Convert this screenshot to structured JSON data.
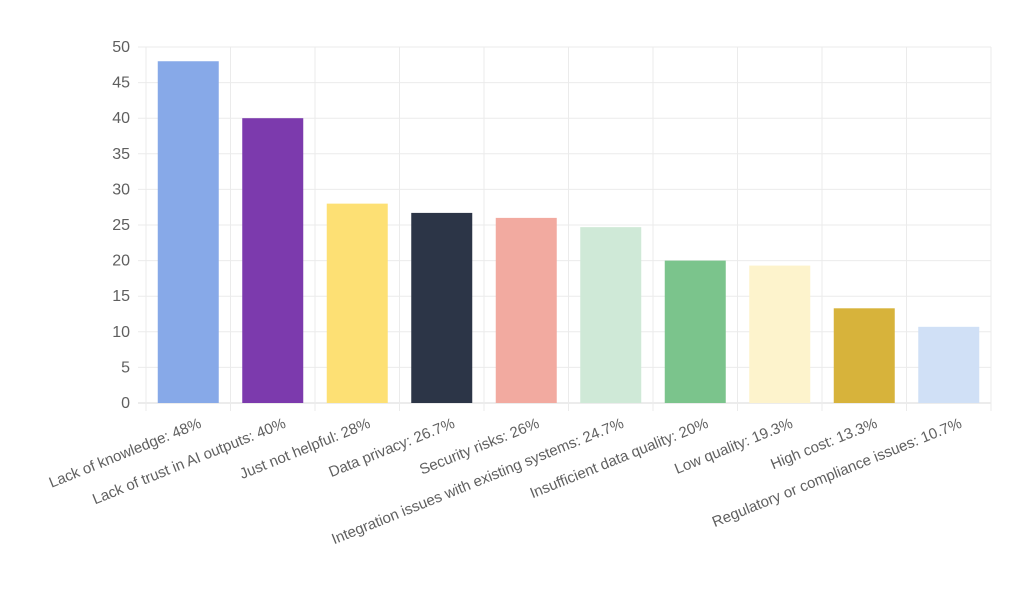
{
  "chart_data": {
    "type": "bar",
    "categories": [
      "Lack of knowledge: 48%",
      "Lack of trust in AI outputs: 40%",
      "Just not helpful: 28%",
      "Data privacy: 26.7%",
      "Security risks: 26%",
      "Integration issues with existing systems: 24.7%",
      "Insufficient data quality: 20%",
      "Low quality: 19.3%",
      "High cost: 13.3%",
      "Regulatory or compliance issues: 10.7%"
    ],
    "values": [
      48,
      40,
      28,
      26.7,
      26,
      24.7,
      20,
      19.3,
      13.3,
      10.7
    ],
    "colors": [
      "#87a9e8",
      "#7c3aad",
      "#fde074",
      "#2c3547",
      "#f2aaa0",
      "#cfe9d7",
      "#7bc48c",
      "#fdf3cc",
      "#d7b33b",
      "#d0e0f6"
    ],
    "ylim": [
      0,
      50
    ],
    "yticks": [
      0,
      5,
      10,
      15,
      20,
      25,
      30,
      35,
      40,
      45,
      50
    ],
    "grid": true,
    "legend": "none",
    "title": "",
    "xlabel": "",
    "ylabel": ""
  }
}
